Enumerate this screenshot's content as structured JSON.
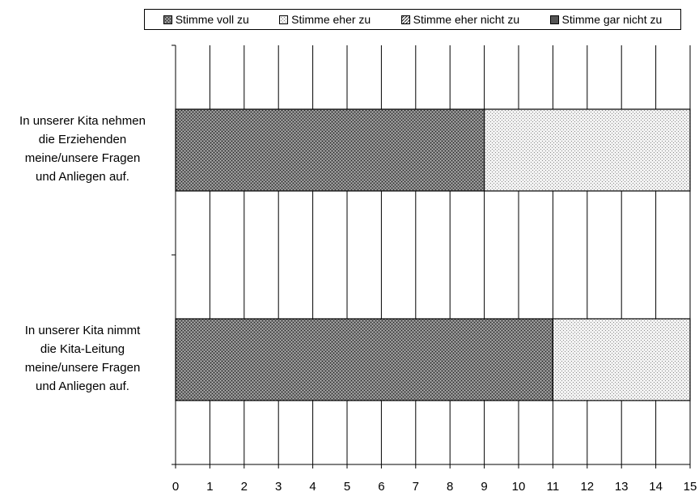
{
  "chart_data": {
    "type": "bar",
    "orientation": "horizontal",
    "stacked": true,
    "title": "",
    "xlabel": "",
    "ylabel": "",
    "xlim": [
      0,
      15
    ],
    "xticks": [
      "0",
      "1",
      "2",
      "3",
      "4",
      "5",
      "6",
      "7",
      "8",
      "9",
      "10",
      "11",
      "12",
      "13",
      "14",
      "15"
    ],
    "grid": "vertical",
    "legend_position": "top",
    "categories": [
      [
        "In unserer Kita nehmen",
        "die Erziehenden",
        "meine/unsere Fragen",
        "und Anliegen auf."
      ],
      [
        "In unserer Kita nimmt",
        "die Kita-Leitung",
        "meine/unsere Fragen",
        "und Anliegen auf."
      ]
    ],
    "series": [
      {
        "name": "Stimme voll zu",
        "values": [
          9,
          11
        ],
        "pattern": "dense-cross",
        "color": "#6e6e6e"
      },
      {
        "name": "Stimme eher zu",
        "values": [
          6,
          4
        ],
        "pattern": "light-dots",
        "color": "#e6e6e6"
      },
      {
        "name": "Stimme eher nicht zu",
        "values": [
          0,
          0
        ],
        "pattern": "diagonal",
        "color": "#8a8a8a"
      },
      {
        "name": "Stimme gar nicht zu",
        "values": [
          0,
          0
        ],
        "pattern": "solid",
        "color": "#555555"
      }
    ]
  }
}
